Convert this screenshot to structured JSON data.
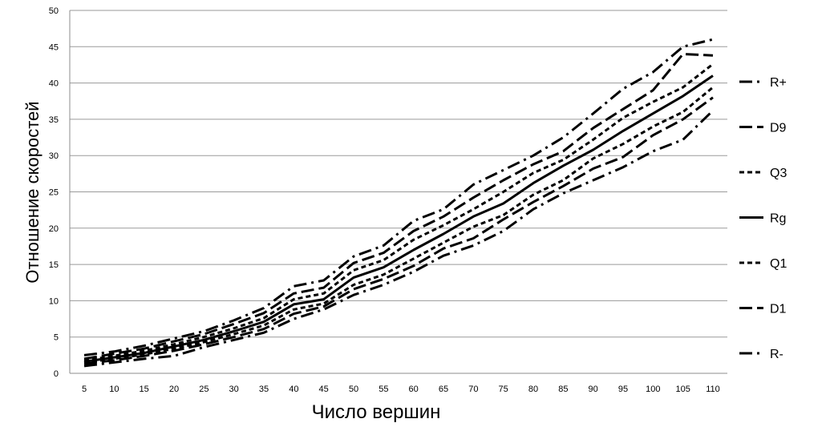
{
  "chart_data": {
    "type": "line",
    "title": "",
    "xlabel": "Число вершин",
    "ylabel": "Отношение скоростей",
    "x": [
      5,
      10,
      15,
      20,
      25,
      30,
      35,
      40,
      45,
      50,
      55,
      60,
      65,
      70,
      75,
      80,
      85,
      90,
      95,
      100,
      105,
      110
    ],
    "ylim": [
      0,
      50
    ],
    "ytick_step": 5,
    "grid": true,
    "legend_position": "right",
    "series": [
      {
        "name": "R+",
        "dash": "long-dash-dot",
        "values": [
          2.5,
          3.0,
          3.8,
          4.8,
          5.8,
          7.3,
          9.0,
          12.0,
          12.8,
          16.1,
          17.6,
          21.0,
          22.6,
          26.0,
          28.0,
          30.0,
          32.5,
          35.8,
          39.2,
          41.5,
          45.0,
          46.0
        ]
      },
      {
        "name": "D9",
        "dash": "long-dash",
        "values": [
          2.0,
          2.7,
          3.4,
          4.4,
          5.4,
          6.8,
          8.3,
          11.0,
          11.8,
          15.2,
          16.6,
          19.6,
          21.6,
          24.2,
          26.6,
          28.8,
          30.6,
          33.8,
          36.4,
          39.0,
          44.0,
          43.8
        ]
      },
      {
        "name": "Q3",
        "dash": "short-dash",
        "values": [
          1.8,
          2.4,
          3.1,
          4.0,
          5.0,
          6.2,
          7.6,
          10.2,
          11.0,
          14.2,
          15.6,
          18.4,
          20.4,
          22.6,
          25.0,
          27.6,
          29.4,
          32.2,
          35.2,
          37.4,
          39.4,
          42.6
        ]
      },
      {
        "name": "Rg",
        "dash": "solid",
        "values": [
          1.6,
          2.2,
          2.8,
          3.7,
          4.6,
          5.8,
          7.1,
          9.5,
          10.2,
          13.2,
          14.6,
          17.0,
          19.2,
          21.6,
          23.4,
          26.2,
          28.6,
          30.8,
          33.4,
          35.8,
          38.2,
          41.0
        ]
      },
      {
        "name": "Q1",
        "dash": "short-dash",
        "values": [
          1.5,
          2.0,
          2.6,
          3.4,
          4.3,
          5.4,
          6.6,
          8.8,
          9.6,
          12.2,
          13.6,
          15.8,
          18.0,
          20.2,
          21.8,
          24.6,
          26.6,
          29.6,
          31.6,
          34.0,
          36.0,
          39.4
        ]
      },
      {
        "name": "D1",
        "dash": "long-dash",
        "values": [
          1.3,
          1.8,
          2.4,
          3.1,
          4.0,
          5.0,
          6.1,
          8.2,
          9.2,
          11.6,
          13.0,
          14.8,
          17.2,
          18.6,
          21.2,
          23.6,
          25.8,
          28.2,
          29.8,
          32.8,
          35.0,
          38.0
        ]
      },
      {
        "name": "R-",
        "dash": "long-dash-dot",
        "values": [
          1.0,
          1.5,
          2.0,
          2.4,
          3.6,
          4.6,
          5.6,
          7.5,
          8.8,
          10.8,
          12.2,
          14.0,
          16.2,
          17.6,
          19.6,
          22.6,
          24.8,
          26.6,
          28.4,
          30.6,
          32.2,
          36.2
        ]
      }
    ]
  }
}
